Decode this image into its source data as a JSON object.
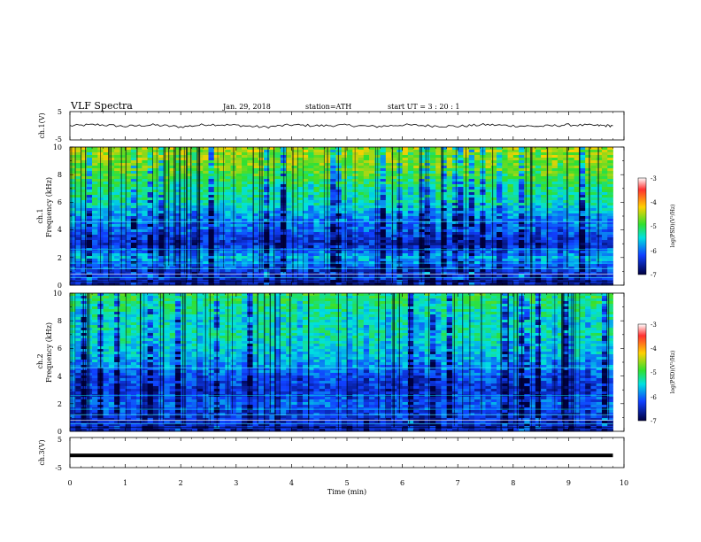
{
  "header": {
    "title": "VLF  Spectra",
    "date": "Jan. 29, 2018",
    "station": "station=ATH",
    "start_ut": "start  UT  =   3  : 20 : 1"
  },
  "panels": {
    "ch1": {
      "ylabel": "ch.1(V)",
      "yticks": [
        "5",
        "-5"
      ]
    },
    "spec1": {
      "ylabel_top": "ch.1",
      "ylabel_bottom": "Frequency  (kHz)",
      "yticks": [
        "10",
        "8",
        "6",
        "4",
        "2",
        "0"
      ]
    },
    "spec2": {
      "ylabel_top": "ch.2",
      "ylabel_bottom": "Frequency  (kHz)",
      "yticks": [
        "10",
        "8",
        "6",
        "4",
        "2",
        "0"
      ]
    },
    "ch3": {
      "ylabel": "ch.3(V)",
      "yticks": [
        "5",
        "-5"
      ]
    }
  },
  "colorbar": {
    "label": "log(PSD)(V²/Hz)",
    "ticks": [
      "-3",
      "-4",
      "-5",
      "-6",
      "-7"
    ],
    "colors": [
      "#ffffff",
      "#ff3030",
      "#ffd000",
      "#30e030",
      "#00e0e0",
      "#1040ff",
      "#000040"
    ]
  },
  "xaxis": {
    "label": "Time  (min)",
    "ticks": [
      "0",
      "1",
      "2",
      "3",
      "4",
      "5",
      "6",
      "7",
      "8",
      "9",
      "10"
    ]
  },
  "chart_data": [
    {
      "type": "line",
      "title": "",
      "xlabel": "",
      "ylabel": "ch.1(V)",
      "xlim": [
        0,
        10
      ],
      "ylim": [
        -5,
        5
      ],
      "series": [
        {
          "x": [
            0,
            0.5,
            1,
            1.5,
            2,
            2.5,
            3,
            3.5,
            4,
            4.5,
            5,
            5.5,
            6,
            6.5,
            7,
            7.5,
            8,
            8.5,
            9,
            9.5,
            9.8
          ],
          "values": [
            0,
            0.4,
            -0.2,
            0.3,
            -0.4,
            0.5,
            0.2,
            -0.5,
            0.3,
            0,
            0.2,
            -0.3,
            0.3,
            0,
            -0.2,
            0.4,
            0,
            -0.2,
            0.3,
            0.1,
            0
          ]
        }
      ]
    },
    {
      "type": "heatmap",
      "title": "",
      "xlabel": "Time  (min)",
      "ylabel": "Frequency  (kHz)",
      "xlim": [
        0,
        10
      ],
      "ylim": [
        0,
        10
      ],
      "data_extent_x": [
        0,
        9.8
      ],
      "zlabel": "log(PSD)(V²/Hz)",
      "zlim": [
        -7,
        -3
      ],
      "y": [
        0,
        1,
        2,
        3,
        4,
        5,
        6,
        7,
        8,
        9,
        10
      ],
      "z_profile": [
        -6.6,
        -6.3,
        -5.6,
        -6.4,
        -6.0,
        -5.8,
        -5.3,
        -5.2,
        -4.8,
        -4.6,
        -4.5
      ]
    },
    {
      "type": "heatmap",
      "title": "",
      "xlabel": "Time  (min)",
      "ylabel": "Frequency  (kHz)",
      "xlim": [
        0,
        10
      ],
      "ylim": [
        0,
        10
      ],
      "data_extent_x": [
        0,
        9.8
      ],
      "zlabel": "log(PSD)(V²/Hz)",
      "zlim": [
        -7,
        -3
      ],
      "y": [
        0,
        1,
        2,
        3,
        4,
        5,
        6,
        7,
        8,
        9,
        10
      ],
      "z_profile": [
        -6.6,
        -6.3,
        -6.0,
        -6.3,
        -6.1,
        -5.7,
        -5.5,
        -5.3,
        -5.4,
        -5.2,
        -5.0
      ]
    },
    {
      "type": "line",
      "title": "",
      "xlabel": "Time  (min)",
      "ylabel": "ch.3(V)",
      "xlim": [
        0,
        10
      ],
      "ylim": [
        -5,
        5
      ],
      "series": [
        {
          "x": [
            0,
            9.8
          ],
          "values": [
            -1,
            -1
          ]
        }
      ]
    }
  ]
}
